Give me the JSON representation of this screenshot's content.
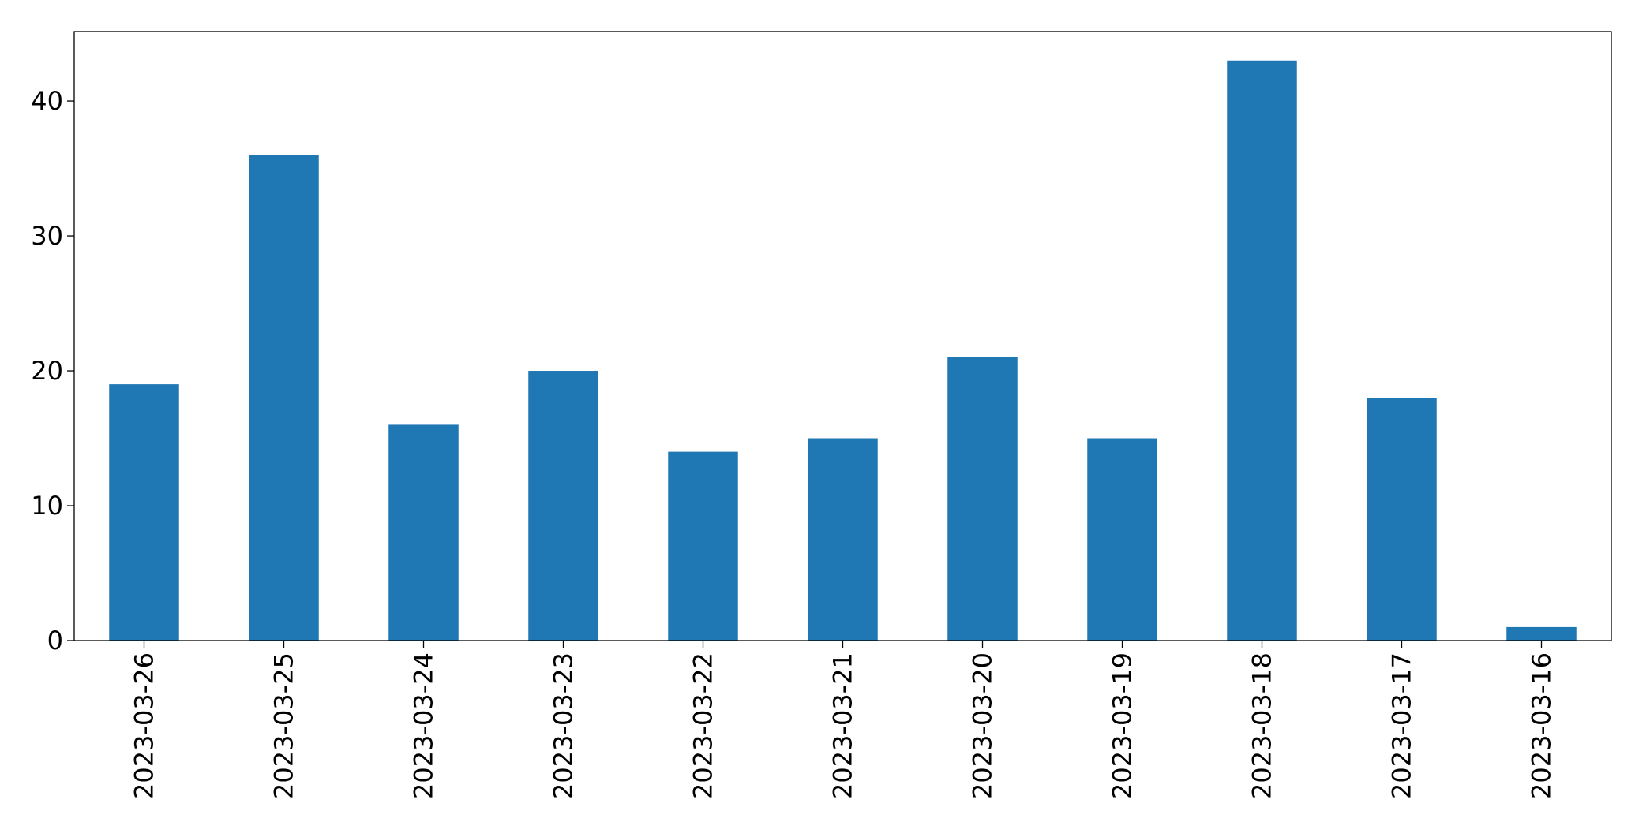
{
  "chart_data": {
    "type": "bar",
    "categories": [
      "2023-03-26",
      "2023-03-25",
      "2023-03-24",
      "2023-03-23",
      "2023-03-22",
      "2023-03-21",
      "2023-03-20",
      "2023-03-19",
      "2023-03-18",
      "2023-03-17",
      "2023-03-16"
    ],
    "values": [
      19,
      36,
      16,
      20,
      14,
      15,
      21,
      15,
      43,
      18,
      1
    ],
    "color": "#1f77b4",
    "ylim": [
      0,
      45.15
    ],
    "yticks": [
      0,
      10,
      20,
      30,
      40
    ],
    "grid": false
  }
}
